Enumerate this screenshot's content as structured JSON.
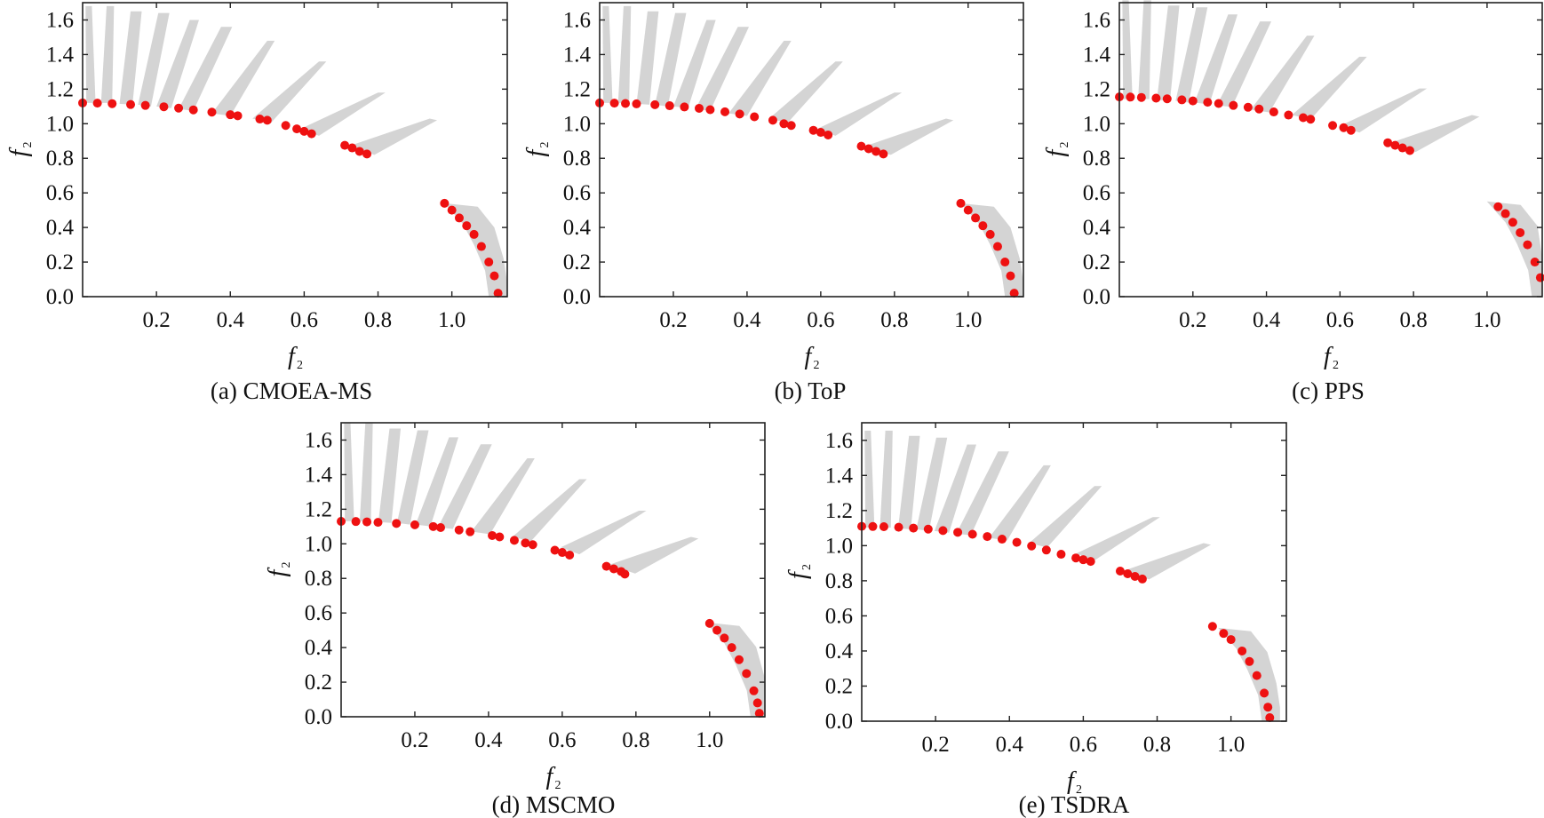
{
  "chart_data": [
    {
      "type": "scatter",
      "caption": "(a) CMOEA-MS",
      "xlabel": "f",
      "xlabel_sub": "2",
      "ylabel": "f",
      "ylabel_sub": "2",
      "xlim": [
        0,
        1.15
      ],
      "ylim": [
        0,
        1.7
      ],
      "xticks": [
        "0.2",
        "0.4",
        "0.6",
        "0.8",
        "1.0"
      ],
      "yticks": [
        "0.0",
        "0.2",
        "0.4",
        "0.6",
        "0.8",
        "1.0",
        "1.2",
        "1.4",
        "1.6"
      ],
      "series": [
        {
          "role": "feasible-region",
          "color": "#d4d4d4"
        },
        {
          "role": "obtained-solutions",
          "color": "#ee1111",
          "x": [
            0.0,
            0.04,
            0.08,
            0.13,
            0.17,
            0.22,
            0.26,
            0.3,
            0.35,
            0.4,
            0.42,
            0.48,
            0.5,
            0.55,
            0.58,
            0.6,
            0.62,
            0.71,
            0.73,
            0.75,
            0.77,
            0.98,
            1.0,
            1.02,
            1.04,
            1.06,
            1.08,
            1.1,
            1.115,
            1.125
          ],
          "y": [
            1.12,
            1.119,
            1.116,
            1.111,
            1.106,
            1.098,
            1.09,
            1.08,
            1.067,
            1.052,
            1.046,
            1.027,
            1.02,
            0.99,
            0.97,
            0.956,
            0.942,
            0.875,
            0.86,
            0.84,
            0.825,
            0.54,
            0.5,
            0.455,
            0.41,
            0.36,
            0.29,
            0.2,
            0.12,
            0.02
          ]
        }
      ]
    },
    {
      "type": "scatter",
      "caption": "(b) ToP",
      "xlabel": "f",
      "xlabel_sub": "2",
      "ylabel": "f",
      "ylabel_sub": "2",
      "xlim": [
        0,
        1.15
      ],
      "ylim": [
        0,
        1.7
      ],
      "xticks": [
        "0.2",
        "0.4",
        "0.6",
        "0.8",
        "1.0"
      ],
      "yticks": [
        "0.0",
        "0.2",
        "0.4",
        "0.6",
        "0.8",
        "1.0",
        "1.2",
        "1.4",
        "1.6"
      ],
      "series": [
        {
          "role": "feasible-region",
          "color": "#d4d4d4"
        },
        {
          "role": "obtained-solutions",
          "color": "#ee1111",
          "x": [
            0.0,
            0.04,
            0.07,
            0.1,
            0.15,
            0.19,
            0.23,
            0.27,
            0.3,
            0.34,
            0.38,
            0.42,
            0.47,
            0.5,
            0.52,
            0.58,
            0.6,
            0.62,
            0.71,
            0.73,
            0.75,
            0.77,
            0.98,
            1.0,
            1.02,
            1.04,
            1.06,
            1.08,
            1.1,
            1.115,
            1.125
          ],
          "y": [
            1.12,
            1.119,
            1.117,
            1.115,
            1.11,
            1.104,
            1.097,
            1.089,
            1.081,
            1.069,
            1.056,
            1.04,
            1.02,
            1.0,
            0.99,
            0.962,
            0.95,
            0.935,
            0.87,
            0.855,
            0.84,
            0.825,
            0.54,
            0.5,
            0.455,
            0.41,
            0.36,
            0.29,
            0.2,
            0.12,
            0.02
          ]
        }
      ]
    },
    {
      "type": "scatter",
      "caption": "(c) PPS",
      "xlabel": "f",
      "xlabel_sub": "2",
      "ylabel": "f",
      "ylabel_sub": "2",
      "xlim": [
        0,
        1.15
      ],
      "ylim": [
        0,
        1.7
      ],
      "xticks": [
        "0.2",
        "0.4",
        "0.6",
        "0.8",
        "1.0"
      ],
      "yticks": [
        "0.0",
        "0.2",
        "0.4",
        "0.6",
        "0.8",
        "1.0",
        "1.2",
        "1.4",
        "1.6"
      ],
      "series": [
        {
          "role": "feasible-region",
          "color": "#d4d4d4"
        },
        {
          "role": "obtained-solutions",
          "color": "#ee1111",
          "x": [
            0.0,
            0.03,
            0.06,
            0.1,
            0.13,
            0.17,
            0.2,
            0.24,
            0.27,
            0.31,
            0.35,
            0.38,
            0.42,
            0.46,
            0.5,
            0.52,
            0.58,
            0.61,
            0.63,
            0.73,
            0.75,
            0.77,
            0.79,
            1.03,
            1.05,
            1.07,
            1.09,
            1.11,
            1.13,
            1.145
          ],
          "y": [
            1.155,
            1.154,
            1.152,
            1.148,
            1.144,
            1.138,
            1.132,
            1.124,
            1.117,
            1.106,
            1.095,
            1.085,
            1.068,
            1.05,
            1.035,
            1.026,
            0.99,
            0.977,
            0.962,
            0.89,
            0.875,
            0.86,
            0.845,
            0.52,
            0.48,
            0.43,
            0.37,
            0.3,
            0.2,
            0.11
          ]
        }
      ]
    },
    {
      "type": "scatter",
      "caption": "(d) MSCMO",
      "xlabel": "f",
      "xlabel_sub": "2",
      "ylabel": "f",
      "ylabel_sub": "2",
      "xlim": [
        0,
        1.15
      ],
      "ylim": [
        0,
        1.7
      ],
      "xticks": [
        "0.2",
        "0.4",
        "0.6",
        "0.8",
        "1.0"
      ],
      "yticks": [
        "0.0",
        "0.2",
        "0.4",
        "0.6",
        "0.8",
        "1.0",
        "1.2",
        "1.4",
        "1.6"
      ],
      "series": [
        {
          "role": "feasible-region",
          "color": "#d4d4d4"
        },
        {
          "role": "obtained-solutions",
          "color": "#ee1111",
          "x": [
            0.0,
            0.04,
            0.07,
            0.1,
            0.15,
            0.2,
            0.25,
            0.27,
            0.32,
            0.35,
            0.41,
            0.43,
            0.47,
            0.5,
            0.52,
            0.58,
            0.6,
            0.62,
            0.72,
            0.74,
            0.76,
            0.77,
            1.0,
            1.02,
            1.04,
            1.06,
            1.08,
            1.1,
            1.12,
            1.13,
            1.135
          ],
          "y": [
            1.13,
            1.129,
            1.127,
            1.124,
            1.118,
            1.11,
            1.1,
            1.094,
            1.08,
            1.07,
            1.048,
            1.04,
            1.02,
            1.005,
            0.995,
            0.963,
            0.95,
            0.935,
            0.87,
            0.855,
            0.84,
            0.825,
            0.54,
            0.5,
            0.455,
            0.4,
            0.33,
            0.25,
            0.15,
            0.08,
            0.02
          ]
        }
      ]
    },
    {
      "type": "scatter",
      "caption": "(e) TSDRA",
      "xlabel": "f",
      "xlabel_sub": "2",
      "ylabel": "f",
      "ylabel_sub": "2",
      "xlim": [
        0,
        1.15
      ],
      "ylim": [
        0,
        1.7
      ],
      "xticks": [
        "0.2",
        "0.4",
        "0.6",
        "0.8",
        "1.0"
      ],
      "yticks": [
        "0.0",
        "0.2",
        "0.4",
        "0.6",
        "0.8",
        "1.0",
        "1.2",
        "1.4",
        "1.6"
      ],
      "series": [
        {
          "role": "feasible-region",
          "color": "#d4d4d4"
        },
        {
          "role": "obtained-solutions",
          "color": "#ee1111",
          "x": [
            0.0,
            0.03,
            0.06,
            0.1,
            0.14,
            0.18,
            0.22,
            0.26,
            0.3,
            0.34,
            0.38,
            0.42,
            0.46,
            0.5,
            0.54,
            0.58,
            0.6,
            0.62,
            0.7,
            0.72,
            0.74,
            0.76,
            0.95,
            0.98,
            1.0,
            1.03,
            1.05,
            1.07,
            1.09,
            1.1,
            1.105
          ],
          "y": [
            1.11,
            1.109,
            1.108,
            1.105,
            1.1,
            1.094,
            1.086,
            1.076,
            1.065,
            1.052,
            1.037,
            1.019,
            0.998,
            0.975,
            0.951,
            0.93,
            0.92,
            0.91,
            0.855,
            0.84,
            0.825,
            0.81,
            0.54,
            0.5,
            0.465,
            0.4,
            0.34,
            0.26,
            0.16,
            0.08,
            0.02
          ]
        }
      ]
    }
  ]
}
